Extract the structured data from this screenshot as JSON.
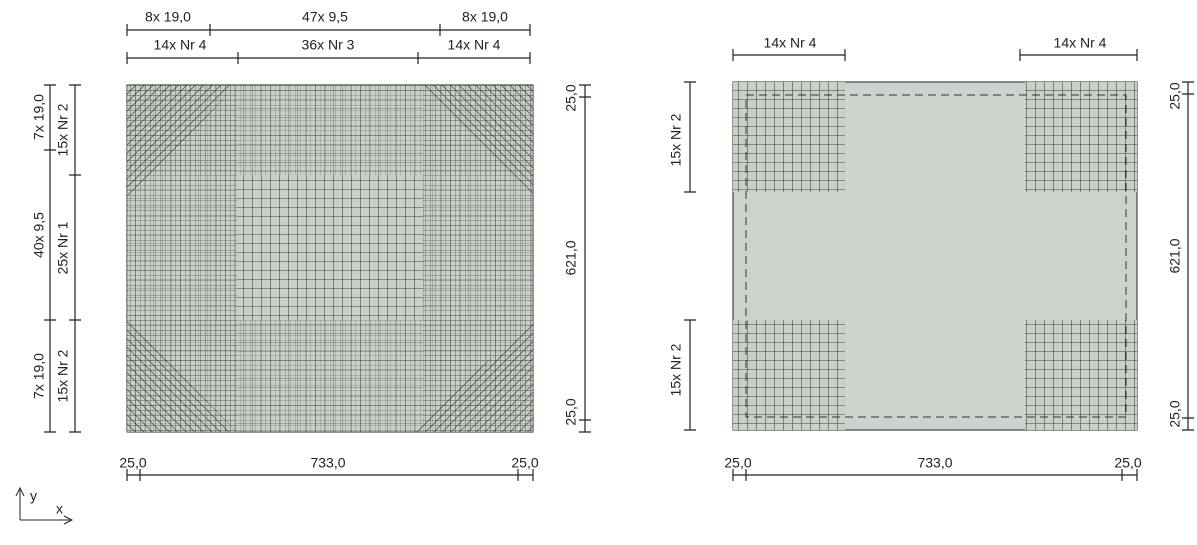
{
  "left_panel": {
    "top_spacing": [
      "8x 19,0",
      "47x 9,5",
      "8x 19,0"
    ],
    "top_bars": [
      "14x Nr 4",
      "36x Nr 3",
      "14x Nr 4"
    ],
    "left_spacing": [
      "7x 19,0",
      "40x 9,5",
      "7x 19,0"
    ],
    "left_bars": [
      "15x Nr 2",
      "25x Nr 1",
      "15x Nr 2"
    ],
    "right_dims": [
      "25,0",
      "621,0",
      "25,0"
    ],
    "bottom_dims": [
      "25,0",
      "733,0",
      "25,0"
    ]
  },
  "right_panel": {
    "top_bars": [
      "14x Nr 4",
      "14x Nr 4"
    ],
    "left_bars": [
      "15x Nr 2",
      "15x Nr 2"
    ],
    "right_dims": [
      "25,0",
      "621,0",
      "25,0"
    ],
    "bottom_dims": [
      "25,0",
      "733,0",
      "25,0"
    ]
  },
  "axes": {
    "y": "y",
    "x": "x"
  }
}
